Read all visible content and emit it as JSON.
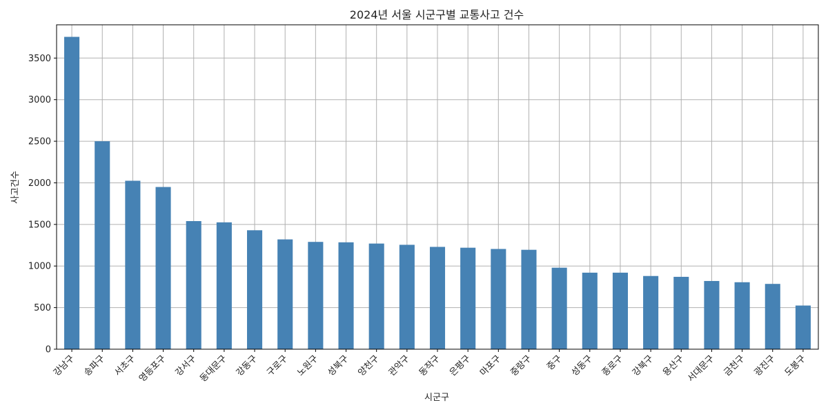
{
  "chart_data": {
    "type": "bar",
    "title": "2024년 서울 시군구별 교통사고 건수",
    "xlabel": "시군구",
    "ylabel": "사고건수",
    "ylim": [
      0,
      3900
    ],
    "yticks": [
      0,
      500,
      1000,
      1500,
      2000,
      2500,
      3000,
      3500
    ],
    "grid": true,
    "bar_color": "#4682b4",
    "grid_color": "#b0b0b0",
    "categories": [
      "강남구",
      "송파구",
      "서초구",
      "영등포구",
      "강서구",
      "동대문구",
      "강동구",
      "구로구",
      "노원구",
      "성북구",
      "양천구",
      "관악구",
      "동작구",
      "은평구",
      "마포구",
      "중랑구",
      "중구",
      "성동구",
      "종로구",
      "강북구",
      "용산구",
      "서대문구",
      "금천구",
      "광진구",
      "도봉구"
    ],
    "values": [
      3755,
      2500,
      2025,
      1950,
      1540,
      1525,
      1430,
      1320,
      1290,
      1285,
      1270,
      1255,
      1230,
      1220,
      1205,
      1195,
      980,
      920,
      920,
      880,
      870,
      820,
      805,
      785,
      525
    ]
  }
}
